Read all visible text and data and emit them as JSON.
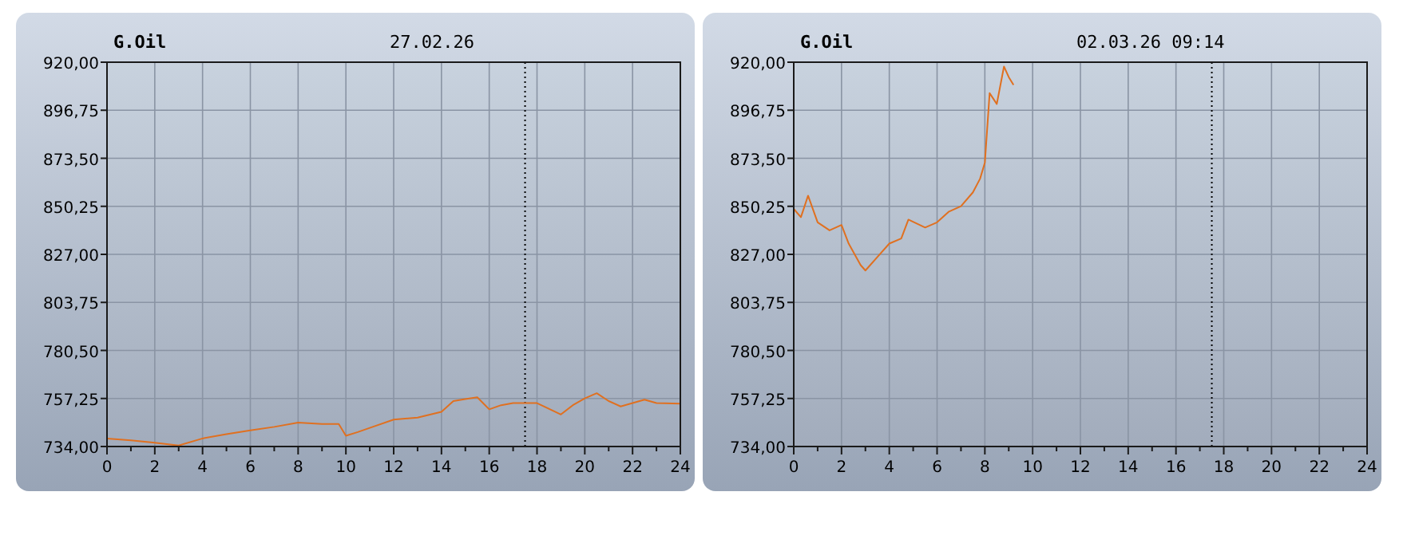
{
  "chart_data": [
    {
      "type": "line",
      "title": "G.Oil",
      "subtitle": "27.02.26",
      "xlim": [
        0,
        24
      ],
      "ylim": [
        734,
        920
      ],
      "xticks": [
        0,
        {
          "value": 1,
          "label": null
        },
        2,
        {
          "value": 3,
          "label": null
        },
        4,
        {
          "value": 5,
          "label": null
        },
        6,
        {
          "value": 7,
          "label": null
        },
        8,
        {
          "value": 9,
          "label": null
        },
        10,
        {
          "value": 11,
          "label": null
        },
        12,
        {
          "value": 13,
          "label": null
        },
        14,
        {
          "value": 15,
          "label": null
        },
        16,
        {
          "value": 17,
          "label": null
        },
        18,
        {
          "value": 19,
          "label": null
        },
        20,
        {
          "value": 21,
          "label": null
        },
        22,
        {
          "value": 23,
          "label": null
        },
        24
      ],
      "yticks": [
        {
          "value": 734,
          "label": "734,00"
        },
        {
          "value": 757.25,
          "label": "757,25"
        },
        {
          "value": 780.5,
          "label": "780,50"
        },
        {
          "value": 803.75,
          "label": "803,75"
        },
        {
          "value": 827,
          "label": "827,00"
        },
        {
          "value": 850.25,
          "label": "850,25"
        },
        {
          "value": 873.5,
          "label": "873,50"
        },
        {
          "value": 896.75,
          "label": "896,75"
        },
        {
          "value": 920,
          "label": "920,00"
        }
      ],
      "grid": true,
      "ref_lines": [
        {
          "axis": "x",
          "value": 17.5,
          "line_style": "dotted",
          "color": "#000000"
        }
      ],
      "series": [
        {
          "color": "#e07020",
          "x": [
            0,
            1,
            2,
            3,
            4,
            5,
            6,
            7,
            8,
            9,
            9.7,
            10,
            10.5,
            11,
            12,
            13,
            14,
            14.5,
            15,
            15.5,
            16,
            16.5,
            17,
            18,
            19,
            19.5,
            20,
            20.5,
            21,
            21.5,
            22,
            22.5,
            23,
            24
          ],
          "values": [
            737.9,
            737,
            735.8,
            734.5,
            737.9,
            740,
            741.8,
            743.5,
            745.6,
            744.9,
            744.9,
            739.2,
            741,
            743,
            747,
            748,
            750.8,
            756,
            757,
            757.8,
            752,
            754,
            755,
            755,
            749.5,
            754,
            757.3,
            759.8,
            756,
            753.4,
            755,
            756.7,
            755,
            754.7
          ]
        }
      ]
    },
    {
      "type": "line",
      "title": "G.Oil",
      "subtitle": "02.03.26 09:14",
      "xlim": [
        0,
        24
      ],
      "ylim": [
        734,
        920
      ],
      "xticks": [
        0,
        {
          "value": 1,
          "label": null
        },
        2,
        {
          "value": 3,
          "label": null
        },
        4,
        {
          "value": 5,
          "label": null
        },
        6,
        {
          "value": 7,
          "label": null
        },
        8,
        {
          "value": 9,
          "label": null
        },
        10,
        {
          "value": 11,
          "label": null
        },
        12,
        {
          "value": 13,
          "label": null
        },
        14,
        {
          "value": 15,
          "label": null
        },
        16,
        {
          "value": 17,
          "label": null
        },
        18,
        {
          "value": 19,
          "label": null
        },
        20,
        {
          "value": 21,
          "label": null
        },
        22,
        {
          "value": 23,
          "label": null
        },
        24
      ],
      "yticks": [
        {
          "value": 734,
          "label": "734,00"
        },
        {
          "value": 757.25,
          "label": "757,25"
        },
        {
          "value": 780.5,
          "label": "780,50"
        },
        {
          "value": 803.75,
          "label": "803,75"
        },
        {
          "value": 827,
          "label": "827,00"
        },
        {
          "value": 850.25,
          "label": "850,25"
        },
        {
          "value": 873.5,
          "label": "873,50"
        },
        {
          "value": 896.75,
          "label": "896,75"
        },
        {
          "value": 920,
          "label": "920,00"
        }
      ],
      "grid": true,
      "ref_lines": [
        {
          "axis": "x",
          "value": 17.5,
          "line_style": "dotted",
          "color": "#000000"
        }
      ],
      "series": [
        {
          "color": "#e07020",
          "x": [
            0,
            0.3,
            0.6,
            1,
            1.5,
            2,
            2.3,
            2.8,
            3,
            3.5,
            4,
            4.5,
            4.8,
            5.5,
            6,
            6.5,
            7,
            7.5,
            7.8,
            8,
            8.2,
            8.5,
            8.8,
            9,
            9.2
          ],
          "values": [
            849,
            845,
            855.4,
            842.5,
            838.6,
            841.2,
            832.2,
            821.8,
            819.2,
            825.7,
            832.2,
            834.7,
            843.8,
            840,
            842.5,
            847.7,
            850.3,
            857,
            863.6,
            871.4,
            905,
            899.8,
            917.9,
            912.8,
            909
          ]
        }
      ]
    }
  ]
}
